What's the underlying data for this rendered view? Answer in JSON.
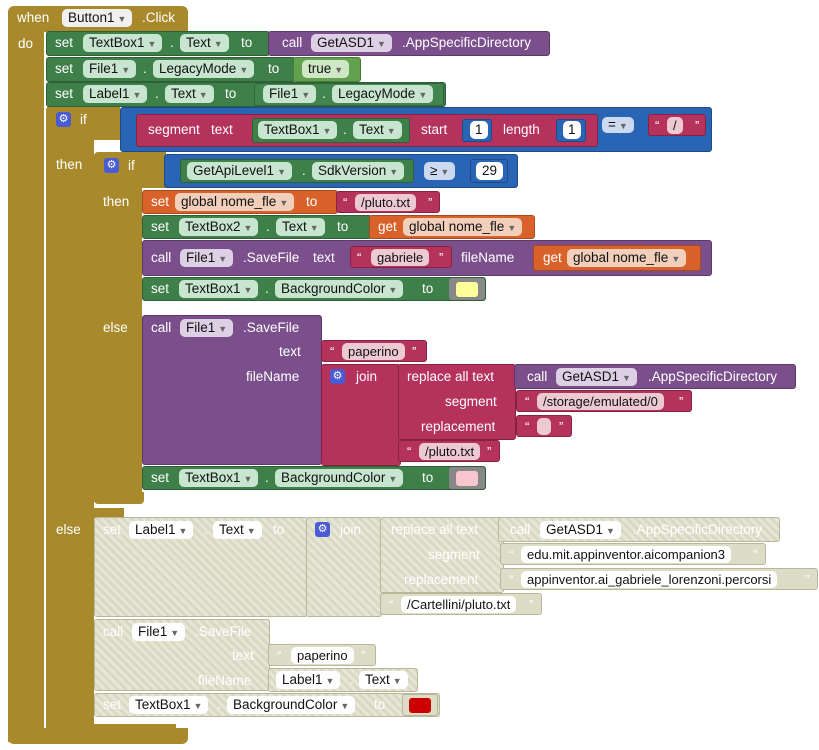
{
  "event": {
    "when": "when",
    "component": "Button1",
    "event": ".Click",
    "do": "do"
  },
  "set": "set",
  "to": "to",
  "call": "call",
  "get": "get",
  "b1": {
    "comp": "TextBox1",
    "prop": "Text",
    "callcomp": "GetASD1",
    "method": ".AppSpecificDirectory"
  },
  "b2": {
    "comp": "File1",
    "prop": "LegacyMode",
    "val": "true"
  },
  "b3": {
    "comp": "Label1",
    "prop": "Text",
    "comp2": "File1",
    "prop2": "LegacyMode"
  },
  "if1": {
    "if": "if",
    "segment": "segment",
    "text": "text",
    "comp": "TextBox1",
    "prop": "Text",
    "start": "start",
    "startv": "1",
    "length": "length",
    "lengthv": "1",
    "op": "=",
    "str": "/"
  },
  "if2": {
    "then": "then",
    "if": "if",
    "comp": "GetApiLevel1",
    "prop": "SdkVersion",
    "op": "≥",
    "num": "29"
  },
  "t1": {
    "then": "then",
    "var": "global nome_fle",
    "str": "/pluto.txt"
  },
  "t2": {
    "comp": "TextBox2",
    "prop": "Text",
    "getvar": "global nome_fle"
  },
  "t3": {
    "comp": "File1",
    "method": ".SaveFile",
    "text": "text",
    "textv": "gabriele",
    "fileName": "fileName",
    "getvar": "global nome_fle"
  },
  "t4": {
    "comp": "TextBox1",
    "prop": "BackgroundColor",
    "color": "#ffff99"
  },
  "e1": {
    "else": "else",
    "comp": "File1",
    "method": ".SaveFile",
    "text": "text",
    "textv": "paperino",
    "fileName": "fileName",
    "join": "join",
    "replace": "replace all text",
    "callcomp": "GetASD1",
    "callmethod": ".AppSpecificDirectory",
    "segment": "segment",
    "segv": "/storage/emulated/0",
    "replacement": "replacement",
    "repv": "",
    "tail": "/pluto.txt"
  },
  "e2": {
    "comp": "TextBox1",
    "prop": "BackgroundColor",
    "color": "#f7c6cf"
  },
  "d1": {
    "else": "else",
    "comp": "Label1",
    "prop": "Text",
    "join": "join",
    "replace": "replace all text",
    "callcomp": "GetASD1",
    "callmethod": ".AppSpecificDirectory",
    "segment": "segment",
    "segv": "edu.mit.appinventor.aicompanion3",
    "replacement": "replacement",
    "repv": "appinventor.ai_gabriele_lorenzoni.percorsi",
    "tail": "/Cartellini/pluto.txt"
  },
  "d2": {
    "comp": "File1",
    "method": ".SaveFile",
    "text": "text",
    "textv": "paperino",
    "fileName": "fileName",
    "fcomp": "Label1",
    "fprop": "Text"
  },
  "d3": {
    "comp": "TextBox1",
    "prop": "BackgroundColor",
    "color": "#cc0000"
  },
  "colors": {
    "control": "#a88a2c",
    "component": "#3f7f4a",
    "procedure": "#7b4f8c",
    "text": "#b4325c",
    "math": "#2a64b4",
    "variable": "#d8622a",
    "logic": "#62a24e",
    "disabled": "#d9d8c2"
  }
}
